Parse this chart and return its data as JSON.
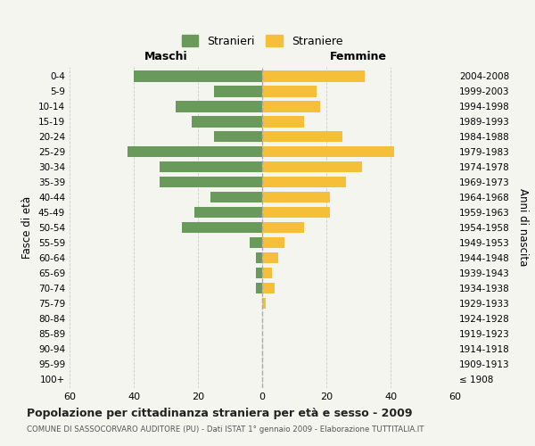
{
  "age_groups": [
    "100+",
    "95-99",
    "90-94",
    "85-89",
    "80-84",
    "75-79",
    "70-74",
    "65-69",
    "60-64",
    "55-59",
    "50-54",
    "45-49",
    "40-44",
    "35-39",
    "30-34",
    "25-29",
    "20-24",
    "15-19",
    "10-14",
    "5-9",
    "0-4"
  ],
  "birth_years": [
    "≤ 1908",
    "1909-1913",
    "1914-1918",
    "1919-1923",
    "1924-1928",
    "1929-1933",
    "1934-1938",
    "1939-1943",
    "1944-1948",
    "1949-1953",
    "1954-1958",
    "1959-1963",
    "1964-1968",
    "1969-1973",
    "1974-1978",
    "1979-1983",
    "1984-1988",
    "1989-1993",
    "1994-1998",
    "1999-2003",
    "2004-2008"
  ],
  "males": [
    0,
    0,
    0,
    0,
    0,
    0,
    2,
    2,
    2,
    4,
    25,
    21,
    16,
    32,
    32,
    42,
    15,
    22,
    27,
    15,
    40
  ],
  "females": [
    0,
    0,
    0,
    0,
    0,
    1,
    4,
    3,
    5,
    7,
    13,
    21,
    21,
    26,
    31,
    41,
    25,
    13,
    18,
    17,
    32
  ],
  "male_color": "#6a9a5b",
  "female_color": "#f5bf3a",
  "background_color": "#f5f5f0",
  "grid_color": "#cccccc",
  "center_line_color": "#aaaaaa",
  "title": "Popolazione per cittadinanza straniera per età e sesso - 2009",
  "subtitle": "COMUNE DI SASSOCORVARO AUDITORE (PU) - Dati ISTAT 1° gennaio 2009 - Elaborazione TUTTITALIA.IT",
  "xlabel_left": "Maschi",
  "xlabel_right": "Femmine",
  "ylabel_left": "Fasce di età",
  "ylabel_right": "Anni di nascita",
  "legend_male": "Stranieri",
  "legend_female": "Straniere",
  "xlim": 60,
  "bar_height": 0.75
}
